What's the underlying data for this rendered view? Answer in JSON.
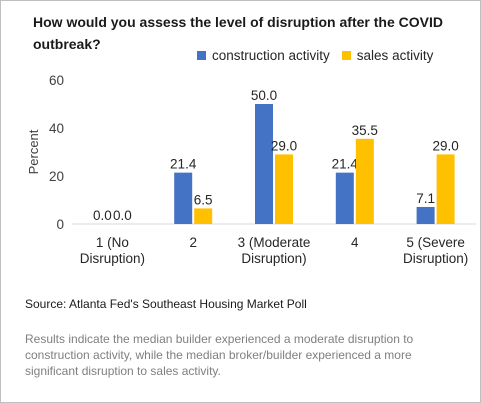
{
  "chart_data": {
    "type": "bar",
    "title": "How would you assess the level of disruption after the COVID outbreak?",
    "ylabel": "Percent",
    "xlabel": "",
    "ylim": [
      0,
      60
    ],
    "yticks": [
      0,
      20,
      40,
      60
    ],
    "categories": [
      [
        "1  (No",
        "Disruption)"
      ],
      [
        "2"
      ],
      [
        "3 (Moderate",
        "Disruption)"
      ],
      [
        "4"
      ],
      [
        "5 (Severe",
        "Disruption)"
      ]
    ],
    "series": [
      {
        "name": "construction activity",
        "color": "#4472c4",
        "values": [
          0.0,
          21.4,
          50.0,
          21.4,
          7.1
        ],
        "labels": [
          "0.0",
          "21.4",
          "50.0",
          "21.4",
          "7.1"
        ]
      },
      {
        "name": "sales activity",
        "color": "#ffc000",
        "values": [
          0.0,
          6.5,
          29.0,
          35.5,
          29.0
        ],
        "labels": [
          "0.0",
          "6.5",
          "29.0",
          "35.5",
          "29.0"
        ]
      }
    ],
    "grid": false,
    "legend_position": "top-right"
  },
  "source": "Source: Atlanta Fed's Southeast Housing Market Poll",
  "note": "Results indicate the median builder experienced a moderate disruption to construction activity, while the median broker/builder experienced a more significant disruption to sales activity."
}
